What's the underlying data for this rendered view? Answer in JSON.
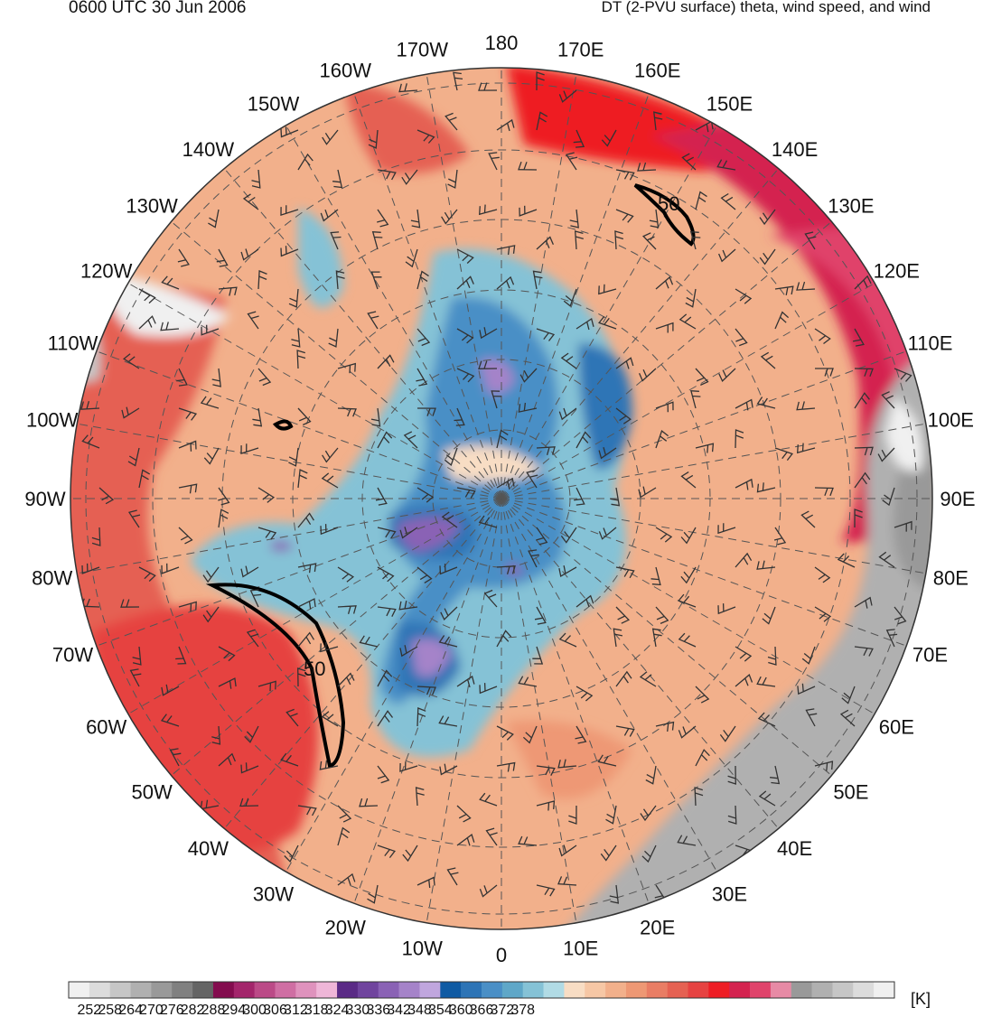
{
  "header": {
    "valid_time": "0600 UTC 30 Jun 2006",
    "field_description": "DT (2-PVU surface) theta, wind speed, and wind"
  },
  "longitude_labels": [
    "180",
    "170E",
    "160E",
    "150E",
    "140E",
    "130E",
    "120E",
    "110E",
    "100E",
    "90E",
    "80E",
    "70E",
    "60E",
    "50E",
    "40E",
    "30E",
    "20E",
    "10E",
    "0",
    "10W",
    "20W",
    "30W",
    "40W",
    "50W",
    "60W",
    "70W",
    "80W",
    "90W",
    "100W",
    "110W",
    "120W",
    "130W",
    "140W",
    "150W",
    "160W",
    "170W"
  ],
  "contour_labels": [
    "50",
    "50"
  ],
  "colorbar": {
    "unit": "[K]",
    "tick_labels": [
      "252",
      "258",
      "264",
      "270",
      "276",
      "282",
      "288",
      "294",
      "300",
      "306",
      "312",
      "318",
      "324",
      "330",
      "336",
      "342",
      "348",
      "354",
      "360",
      "366",
      "372",
      "378"
    ],
    "colors": [
      "#f0f0f0",
      "#dcdcdc",
      "#c6c6c6",
      "#b0b0b0",
      "#999999",
      "#808080",
      "#646464",
      "#830c4e",
      "#a3256b",
      "#bb4a87",
      "#cf6ea3",
      "#df92bd",
      "#efb6d8",
      "#5a2a86",
      "#70449e",
      "#8a62b5",
      "#a583c9",
      "#c0a6de",
      "#0f5aa3",
      "#2d74b6",
      "#4a8fc6",
      "#5fa7c8",
      "#85c2d6",
      "#b1dbe5",
      "#f8ddc4",
      "#f6c7a5",
      "#f2b08b",
      "#ee9874",
      "#e97d64",
      "#e56152",
      "#e64241",
      "#ee1c24",
      "#d4224f",
      "#e0436b",
      "#e78aa5",
      "#999999",
      "#b0b0b0",
      "#c6c6c6",
      "#dcdcdc",
      "#f0f0f0"
    ]
  }
}
